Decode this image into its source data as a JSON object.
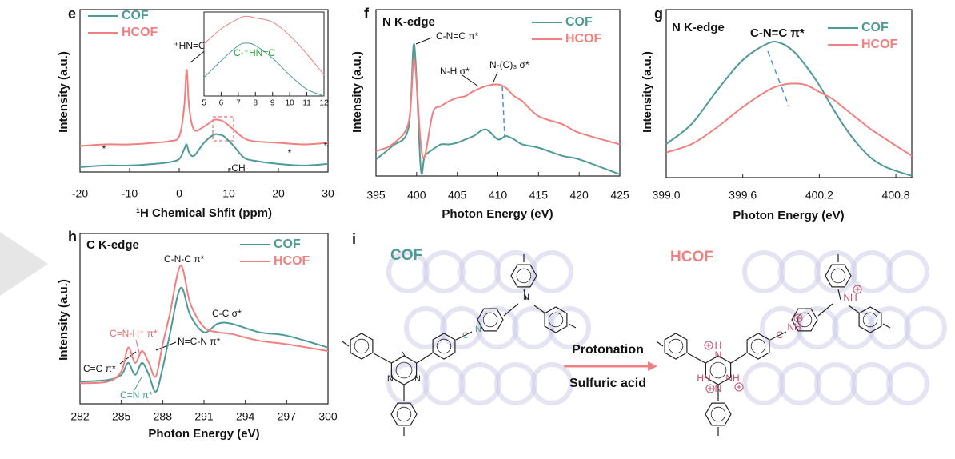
{
  "chart_data": [
    {
      "type": "line",
      "panel": "e",
      "xlabel": "¹H Chemical Shfit (ppm)",
      "ylabel": "Intensity (a.u.)",
      "x": [
        -20,
        -15,
        -10,
        -5,
        -2,
        0,
        1,
        1.5,
        2,
        3,
        5,
        7,
        8,
        9,
        11,
        13,
        15,
        20,
        25,
        30
      ],
      "series": [
        {
          "name": "COF",
          "color": "#4e9a95",
          "values": [
            3,
            4,
            4,
            5,
            6,
            8,
            14,
            17,
            12,
            10,
            18,
            23,
            23,
            22,
            16,
            9,
            7,
            5,
            4,
            5
          ]
        },
        {
          "name": "HCOF",
          "color": "#f08080",
          "values": [
            16,
            17,
            17,
            18,
            19,
            22,
            40,
            63,
            40,
            26,
            28,
            32,
            32,
            31,
            26,
            21,
            19,
            18,
            17,
            18
          ]
        }
      ],
      "xlim": [
        -20,
        30
      ],
      "ylim": [
        0,
        100
      ],
      "xticks": [
        -20,
        -10,
        0,
        10,
        20,
        30
      ],
      "annotations": [
        "⁺HN=C",
        "-CH",
        "*",
        "*",
        "*"
      ]
    },
    {
      "type": "line",
      "x": [
        5,
        6,
        7,
        7.5,
        8,
        9,
        10,
        11,
        12
      ],
      "series": [
        {
          "color": "#f08080",
          "values": [
            62,
            80,
            92,
            95,
            93,
            88,
            72,
            50,
            25
          ]
        },
        {
          "color": "#4e9a95",
          "values": [
            22,
            42,
            60,
            63,
            60,
            45,
            25,
            8,
            0
          ]
        }
      ],
      "xlim": [
        5,
        12
      ],
      "ylim": [
        0,
        100
      ],
      "xticks": [
        5,
        6,
        7,
        8,
        9,
        10,
        11,
        12
      ],
      "annotations": [
        "C-⁺HN=C"
      ]
    },
    {
      "type": "line",
      "panel": "f",
      "xlabel": "Photon Energy (eV)",
      "ylabel": "Intensity (a.u.)",
      "x": [
        395,
        397,
        399,
        399.7,
        400.5,
        401,
        402,
        403,
        404,
        405,
        406,
        407,
        408.5,
        410,
        411,
        412,
        413,
        415,
        418,
        420,
        425
      ],
      "series": [
        {
          "name": "COF",
          "color": "#4e9a95",
          "values": [
            10,
            18,
            29,
            79,
            5,
            12,
            16,
            19,
            19,
            20,
            22,
            24,
            28,
            22,
            24,
            22,
            19,
            17,
            12,
            10,
            1
          ]
        },
        {
          "name": "HCOF",
          "color": "#f08080",
          "values": [
            15,
            19,
            32,
            70,
            20,
            12,
            38,
            42,
            45,
            47,
            48,
            51,
            54,
            55,
            53,
            48,
            45,
            36,
            31,
            26,
            19
          ]
        }
      ],
      "xlim": [
        395,
        425
      ],
      "ylim": [
        0,
        100
      ],
      "xticks": [
        395,
        400,
        405,
        410,
        415,
        420,
        425
      ],
      "annotations": [
        "N K-edge",
        "C-N=C π*",
        "N-H σ*",
        "N-(C)₃ σ*"
      ]
    },
    {
      "type": "line",
      "panel": "g",
      "xlabel": "Photon Energy (eV)",
      "ylabel": "Intensity (a.u.)",
      "x": [
        399.0,
        399.2,
        399.4,
        399.6,
        399.8,
        399.9,
        400.0,
        400.1,
        400.2,
        400.3,
        400.4,
        400.5,
        400.6,
        400.7,
        400.8,
        400.925
      ],
      "series": [
        {
          "name": "COF",
          "color": "#4e9a95",
          "values": [
            20,
            32,
            52,
            70,
            80,
            80,
            75,
            66,
            55,
            42,
            30,
            20,
            12,
            7,
            4,
            1
          ]
        },
        {
          "name": "HCOF",
          "color": "#f08080",
          "values": [
            15,
            20,
            30,
            42,
            52,
            55,
            56,
            55,
            51,
            47,
            41,
            35,
            29,
            24,
            19,
            13
          ]
        }
      ],
      "xlim": [
        399.0,
        400.925
      ],
      "ylim": [
        0,
        100
      ],
      "xticks": [
        {
          "value": 399.0,
          "label": "399.0"
        },
        399.6,
        400.2,
        400.8
      ],
      "annotations": [
        "N K-edge",
        "C-N=C π*"
      ]
    },
    {
      "type": "line",
      "panel": "h",
      "xlabel": "Photon Energy (eV)",
      "ylabel": "Intensity (a.u.)",
      "x": [
        282,
        284,
        285,
        285.5,
        286,
        286.5,
        287,
        287.5,
        288,
        288.5,
        289.3,
        290,
        291,
        292,
        293,
        295,
        297,
        300
      ],
      "series": [
        {
          "name": "COF",
          "color": "#4e9a95",
          "values": [
            13,
            14,
            17,
            24,
            17,
            24,
            17,
            7,
            21,
            40,
            68,
            52,
            42,
            47,
            47,
            42,
            40,
            33
          ]
        },
        {
          "name": "HCOF",
          "color": "#f08080",
          "values": [
            12,
            13,
            19,
            33,
            24,
            31,
            24,
            16,
            35,
            52,
            81,
            59,
            45,
            42,
            41,
            37,
            35,
            31
          ]
        }
      ],
      "xlim": [
        282,
        300
      ],
      "ylim": [
        0,
        100
      ],
      "xticks": [
        282,
        285,
        288,
        291,
        294,
        297,
        300
      ],
      "annotations": [
        "C K-edge",
        "C-N-C π*",
        "C-C σ*",
        "C=N-H⁺ π*",
        "N=C-N π*",
        "C=C π*",
        "C=N π*"
      ]
    }
  ],
  "diagram": {
    "panel": "i",
    "left_title": "COF",
    "right_title": "HCOF",
    "arrow_top": "Protonation",
    "arrow_bottom": "Sulfuric acid",
    "left_atoms": [
      "N",
      "N",
      "N",
      "C",
      "N",
      "N"
    ],
    "right_atoms": [
      "H",
      "N",
      "HN",
      "NH",
      "N",
      "C",
      "NH",
      "NH"
    ]
  }
}
